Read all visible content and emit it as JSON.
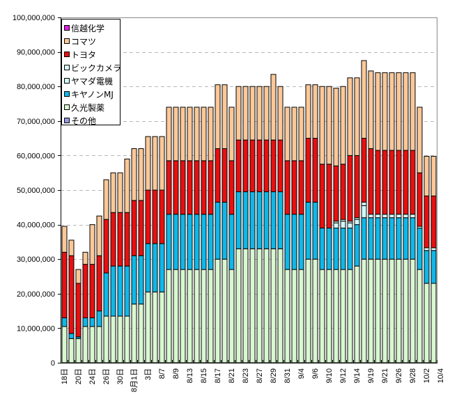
{
  "chart_data": {
    "type": "bar",
    "stacked": true,
    "title": "",
    "xlabel": "",
    "ylabel": "",
    "ylim": [
      0,
      100000000
    ],
    "yticks": [
      0,
      10000000,
      20000000,
      30000000,
      40000000,
      50000000,
      60000000,
      70000000,
      80000000,
      90000000,
      100000000
    ],
    "ytick_labels": [
      "0",
      "10,000,000",
      "20,000,000",
      "30,000,000",
      "40,000,000",
      "50,000,000",
      "60,000,000",
      "70,000,000",
      "80,000,000",
      "90,000,000",
      "100,000,000"
    ],
    "grid": "horizontal dashed",
    "legend_position": "top-left",
    "xtick_labels": [
      "18日",
      "20日",
      "24日",
      "26日",
      "30日",
      "8月1日",
      "3日",
      "8/7",
      "8/9",
      "8/13",
      "8/15",
      "8/17",
      "8/21",
      "8/23",
      "8/27",
      "8/29",
      "8/31",
      "9/4",
      "9/6",
      "9/10",
      "9/12",
      "9/14",
      "9/19",
      "9/21",
      "9/26",
      "9/28",
      "10/2",
      "10/4"
    ],
    "legend": [
      {
        "name": "信越化学",
        "color": "#e020e0"
      },
      {
        "name": "コマツ",
        "color": "#fcc898"
      },
      {
        "name": "トヨタ",
        "color": "#e81010"
      },
      {
        "name": "ビックカメラ",
        "color": "#d8f8f8"
      },
      {
        "name": "ヤマダ電機",
        "color": "#d0f8f8"
      },
      {
        "name": "キヤノンMJ",
        "color": "#10b8e8"
      },
      {
        "name": "久光製薬",
        "color": "#d8f8d0"
      },
      {
        "name": "その他",
        "color": "#9898e8"
      }
    ],
    "num_bars": 54,
    "series": [
      {
        "name": "久光製薬",
        "color": "#d8f8d0",
        "values": [
          10.5,
          7,
          7,
          10.5,
          10.5,
          10.5,
          13.5,
          13.5,
          13.5,
          13.5,
          17,
          17,
          20.5,
          20.5,
          20.5,
          27,
          27,
          27,
          27,
          27,
          27,
          27,
          30,
          30,
          27,
          33,
          33,
          33,
          33,
          33,
          33,
          33,
          27,
          27,
          27,
          30,
          30,
          27,
          27,
          27,
          27,
          27,
          28,
          30,
          30,
          30,
          30,
          30,
          30,
          30,
          30,
          27,
          23,
          23
        ]
      },
      {
        "name": "キヤノンMJ",
        "color": "#10b8e8",
        "values": [
          2.5,
          1.5,
          0.5,
          2.5,
          2.5,
          4.5,
          12.5,
          14.5,
          14.5,
          14.5,
          14,
          14,
          14,
          14,
          14,
          16,
          16,
          16,
          16,
          16,
          16,
          16,
          16.5,
          16.5,
          16,
          16.5,
          16.5,
          16.5,
          16.5,
          16.5,
          16.5,
          16.5,
          16,
          16,
          16,
          16.5,
          16.5,
          12,
          12,
          12,
          12,
          12,
          12,
          12,
          12,
          12,
          12,
          12,
          12,
          12,
          12,
          12,
          9.5,
          9.5
        ]
      },
      {
        "name": "ヤマダ電機",
        "color": "#d0f8f8",
        "values": [
          0,
          0,
          0,
          0,
          0,
          0,
          0,
          0,
          0,
          0,
          0,
          0,
          0,
          0,
          0,
          0,
          0,
          0,
          0,
          0,
          0,
          0,
          0,
          0,
          0,
          0,
          0,
          0,
          0,
          0,
          0,
          0,
          0,
          0,
          0,
          0,
          0,
          0,
          0,
          1.5,
          2,
          1.5,
          1.5,
          3.5,
          0,
          0,
          0,
          0,
          0,
          0,
          0,
          0,
          0,
          0
        ]
      },
      {
        "name": "ビックカメラ",
        "color": "#d8f8f8",
        "values": [
          0,
          0,
          0,
          0,
          0,
          0,
          0,
          0,
          0,
          0,
          0,
          0,
          0,
          0,
          0,
          0,
          0,
          0,
          0,
          0,
          0,
          0,
          0,
          0,
          0,
          0,
          0,
          0,
          0,
          0,
          0,
          0,
          0,
          0,
          0,
          0,
          0,
          0,
          0,
          0.5,
          0.5,
          0.5,
          0.5,
          1,
          1,
          1,
          1,
          1,
          1,
          1,
          1,
          0.5,
          0.8,
          0.8
        ]
      },
      {
        "name": "トヨタ",
        "color": "#e81010",
        "values": [
          19,
          22.5,
          15.5,
          15.5,
          15.5,
          16,
          15.5,
          15.5,
          15.5,
          15.5,
          16,
          16,
          15.5,
          15.5,
          15.5,
          15.5,
          15.5,
          15.5,
          15.5,
          15.5,
          15.5,
          15.5,
          15.5,
          15.5,
          15.5,
          15,
          15,
          15,
          15,
          15,
          15,
          15,
          15.5,
          15.5,
          15.5,
          18.5,
          18.5,
          18.5,
          18.5,
          16,
          16,
          19,
          18,
          18.5,
          19,
          18.5,
          18.5,
          18.5,
          18.5,
          18.5,
          18.5,
          15.5,
          15,
          15
        ]
      },
      {
        "name": "コマツ",
        "color": "#fcc898",
        "values": [
          7.5,
          4.5,
          4,
          3.5,
          11.5,
          11.5,
          11.5,
          11.5,
          11.5,
          15.5,
          15,
          15,
          15.5,
          15.5,
          15.5,
          15.5,
          15.5,
          15.5,
          15.5,
          15.5,
          15.5,
          15.5,
          18.5,
          18.5,
          15.5,
          15.5,
          15.5,
          15.5,
          15.5,
          15.5,
          19,
          15.5,
          15.5,
          15.5,
          15.5,
          15.5,
          15.5,
          22.5,
          22.5,
          22.5,
          22.5,
          22.5,
          22.5,
          22.5,
          22.5,
          22.5,
          22.5,
          22.5,
          22.5,
          22.5,
          22.5,
          19,
          11.5,
          11.5
        ]
      }
    ],
    "value_unit": "millions"
  }
}
